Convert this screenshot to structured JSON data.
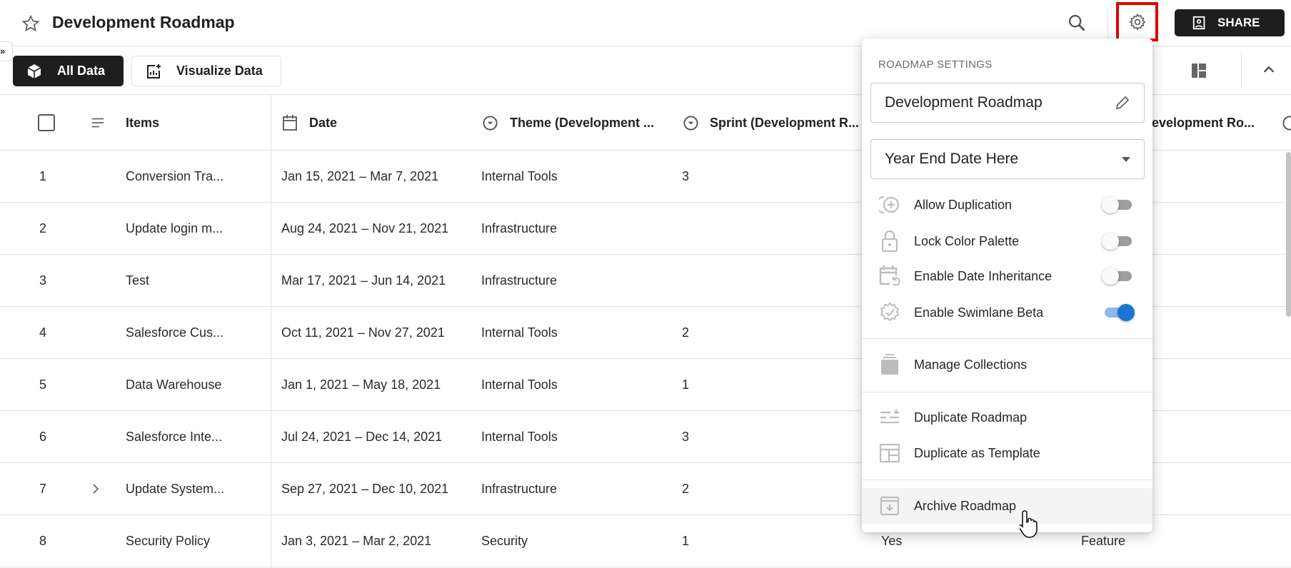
{
  "header": {
    "title": "Development Roadmap",
    "share_label": "SHARE"
  },
  "toolbar": {
    "all_data": "All Data",
    "visualize_data": "Visualize Data"
  },
  "table": {
    "columns": [
      "Items",
      "Date",
      "Theme (Development ...",
      "Sprint (Development R...",
      "Development Ro..."
    ],
    "rows": [
      {
        "num": "1",
        "item": "Conversion Tra...",
        "date": "Jan 15, 2021 – Mar 7, 2021",
        "theme": "Internal Tools",
        "sprint": "3",
        "col5": "",
        "col6": ""
      },
      {
        "num": "2",
        "item": "Update login m...",
        "date": "Aug 24, 2021 – Nov 21, 2021",
        "theme": "Infrastructure",
        "sprint": "",
        "col5": "",
        "col6": ""
      },
      {
        "num": "3",
        "item": "Test",
        "date": "Mar 17, 2021 – Jun 14, 2021",
        "theme": "Infrastructure",
        "sprint": "",
        "col5": "",
        "col6": ""
      },
      {
        "num": "4",
        "item": "Salesforce Cus...",
        "date": "Oct 11, 2021 – Nov 27, 2021",
        "theme": "Internal Tools",
        "sprint": "2",
        "col5": "",
        "col6": ""
      },
      {
        "num": "5",
        "item": "Data Warehouse",
        "date": "Jan 1, 2021 – May 18, 2021",
        "theme": "Internal Tools",
        "sprint": "1",
        "col5": "",
        "col6": ""
      },
      {
        "num": "6",
        "item": "Salesforce Inte...",
        "date": "Jul 24, 2021 – Dec 14, 2021",
        "theme": "Internal Tools",
        "sprint": "3",
        "col5": "",
        "col6": ""
      },
      {
        "num": "7",
        "item": "Update System...",
        "date": "Sep 27, 2021 – Dec 10, 2021",
        "theme": "Infrastructure",
        "sprint": "2",
        "col5": "",
        "col6": "",
        "expandable": true
      },
      {
        "num": "8",
        "item": "Security Policy",
        "date": "Jan 3, 2021 – Mar 2, 2021",
        "theme": "Security",
        "sprint": "1",
        "col5": "Yes",
        "col6": "Feature"
      }
    ]
  },
  "settings": {
    "heading": "ROADMAP SETTINGS",
    "name_value": "Development Roadmap",
    "year_end_value": "Year End Date Here",
    "toggles": [
      {
        "label": "Allow Duplication",
        "icon": "duplicate-plus-icon",
        "on": false
      },
      {
        "label": "Lock Color Palette",
        "icon": "lock-icon",
        "on": false
      },
      {
        "label": "Enable Date Inheritance",
        "icon": "calendar-refresh-icon",
        "on": false
      },
      {
        "label": "Enable Swimlane Beta",
        "icon": "badge-check-icon",
        "on": true
      }
    ],
    "manage_collections": "Manage Collections",
    "duplicate_roadmap": "Duplicate Roadmap",
    "duplicate_template": "Duplicate as Template",
    "archive_roadmap": "Archive Roadmap"
  },
  "colors": {
    "accent": "#1976d2",
    "highlight": "#e00000",
    "dark_button": "#1e1e1e"
  }
}
